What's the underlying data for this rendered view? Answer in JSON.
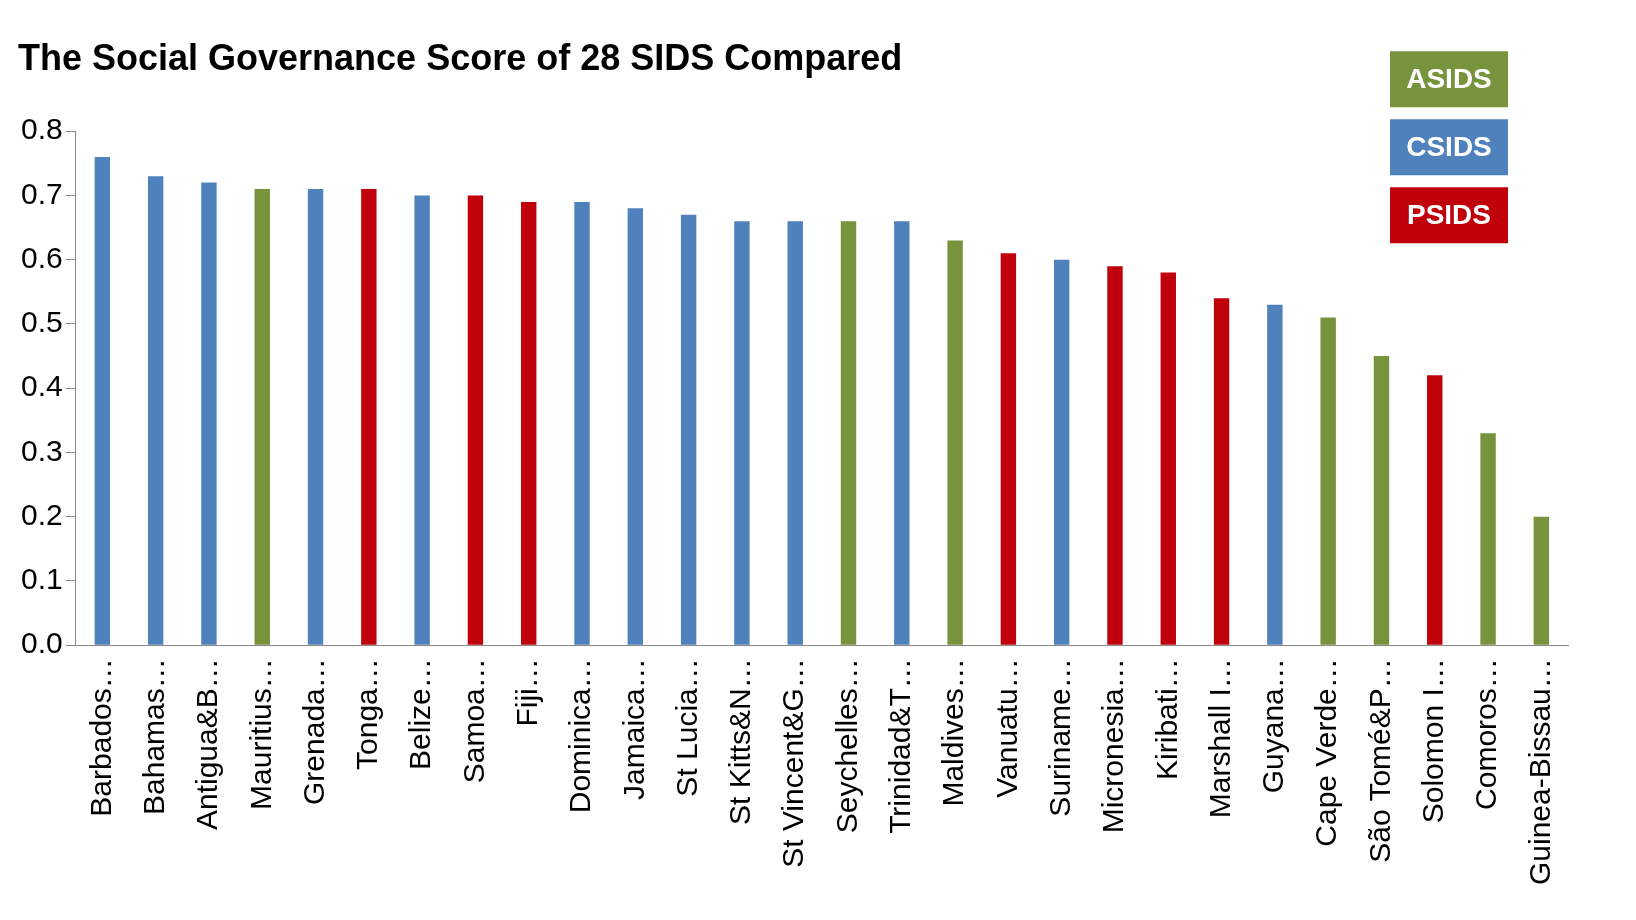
{
  "chart_data": {
    "type": "bar",
    "title": "The Social Governance Score of 28 SIDS Compared",
    "stacked": true,
    "legend": "top right",
    "grid": false,
    "categories": [
      "Barbados…",
      "Bahamas…",
      "Antigua&B…",
      "Mauritius…",
      "Grenada…",
      "Tonga…",
      "Belize…",
      "Samoa…",
      "Fiji…",
      "Dominica…",
      "Jamaica…",
      "St Lucia…",
      "St Kitts&N…",
      "St Vincent&G…",
      "Seychelles…",
      "Trinidad&T…",
      "Maldives…",
      "Vanuatu…",
      "Suriname…",
      "Micronesia…",
      "Kiribati…",
      "Marshall I…",
      "Guyana…",
      "Cape Verde…",
      "São Tomé&P…",
      "Solomon I…",
      "Comoros…",
      "Guinea-Bissau…"
    ],
    "series": [
      {
        "name": "ASIDS",
        "color": "#77933c",
        "values": [
          null,
          null,
          null,
          0.71,
          null,
          null,
          null,
          null,
          null,
          null,
          null,
          null,
          null,
          null,
          0.66,
          null,
          0.63,
          null,
          null,
          null,
          null,
          null,
          null,
          0.51,
          0.45,
          null,
          0.33,
          0.2
        ]
      },
      {
        "name": "CSIDS",
        "color": "#4f81bd",
        "values": [
          0.76,
          0.73,
          0.72,
          null,
          0.71,
          null,
          0.7,
          null,
          null,
          0.69,
          0.68,
          0.67,
          0.66,
          0.66,
          null,
          0.66,
          null,
          null,
          0.6,
          null,
          null,
          null,
          0.53,
          null,
          null,
          null,
          null,
          null
        ]
      },
      {
        "name": "PSIDS",
        "color": "#c0000b",
        "values": [
          null,
          null,
          null,
          null,
          null,
          0.71,
          null,
          0.7,
          0.69,
          null,
          null,
          null,
          null,
          null,
          null,
          null,
          null,
          0.61,
          null,
          0.59,
          0.58,
          0.54,
          null,
          null,
          null,
          0.42,
          null,
          null
        ]
      }
    ],
    "ylim": [
      0,
      0.8
    ],
    "yticks": [
      {
        "value": 0,
        "label": "0.0"
      },
      {
        "value": 0.1,
        "label": "0.1"
      },
      {
        "value": 0.2,
        "label": "0.2"
      },
      {
        "value": 0.3,
        "label": "0.3"
      },
      {
        "value": 0.4,
        "label": "0.4"
      },
      {
        "value": 0.5,
        "label": "0.5"
      },
      {
        "value": 0.6,
        "label": "0.6"
      },
      {
        "value": 0.7,
        "label": "0.7"
      },
      {
        "value": 0.8,
        "label": "0.8"
      }
    ]
  }
}
